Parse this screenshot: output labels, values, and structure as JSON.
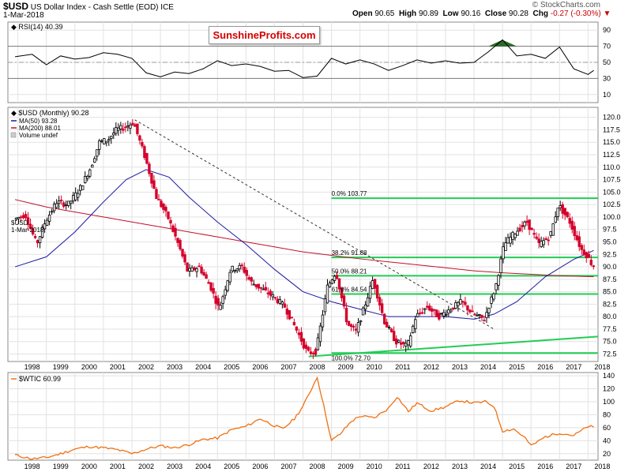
{
  "header": {
    "symbol": "$USD",
    "name": "US Dollar Index - Cash Settle (EOD)",
    "exchange": "ICE",
    "date": "1-Mar-2018",
    "open_label": "Open",
    "open": "90.65",
    "high_label": "High",
    "high": "90.89",
    "low_label": "Low",
    "low": "90.16",
    "close_label": "Close",
    "close": "90.28",
    "chg_label": "Chg",
    "chg": "-0.27 (-0.30%)",
    "copyright": "© StockCharts.com"
  },
  "brand": "SunshineProfits.com",
  "rsi": {
    "label": "RSI(14)",
    "value": "40.39",
    "ticks": [
      90,
      70,
      50,
      30,
      10
    ],
    "overbought": 70,
    "oversold": 30
  },
  "main_legend": {
    "price": "$USD (Monthly) 90.28",
    "ma50": "MA(50) 93.28",
    "ma200": "MA(200) 88.01",
    "volume": "Volume undef"
  },
  "wtic_legend": "$WTIC 60.99",
  "fib_labels": {
    "f0": "0.0% 103.77",
    "f382": "38.2% 91.88",
    "f50": "50.0% 88.21",
    "f618": "61.8% 84.54",
    "f100": "100.0% 72.70"
  },
  "x_axis_labels": [
    "1998",
    "1999",
    "2000",
    "2001",
    "2002",
    "2003",
    "2004",
    "2005",
    "2006",
    "2007",
    "2008",
    "2009",
    "2010",
    "2011",
    "2012",
    "2013",
    "2014",
    "2015",
    "2016",
    "2017",
    "2018"
  ],
  "colors": {
    "price_up": "#000000",
    "price_down": "#d4002a",
    "ma50": "#1a1aa0",
    "ma200": "#c0102a",
    "fib": "#22cc55",
    "trend": "#22cc55",
    "wtic": "#f07010",
    "rsi_over": "#2a6a2a",
    "rsi_under": "#9a4040"
  },
  "chart_data": [
    {
      "type": "line",
      "title": "RSI(14)",
      "x": [
        1997.9,
        1998.5,
        1999,
        1999.5,
        2000,
        2000.5,
        2001,
        2001.5,
        2002,
        2002.5,
        2003,
        2003.5,
        2004,
        2004.5,
        2005,
        2005.5,
        2006,
        2006.5,
        2007,
        2007.5,
        2008,
        2008.5,
        2009,
        2009.5,
        2010,
        2010.5,
        2011,
        2011.5,
        2012,
        2012.5,
        2013,
        2013.5,
        2014,
        2014.5,
        2015,
        2015.5,
        2016,
        2016.5,
        2017,
        2017.5,
        2018,
        2018.2
      ],
      "values": [
        57,
        60,
        47,
        58,
        54,
        56,
        62,
        60,
        55,
        37,
        32,
        38,
        36,
        42,
        52,
        46,
        48,
        45,
        39,
        40,
        31,
        33,
        55,
        48,
        53,
        48,
        40,
        46,
        53,
        49,
        52,
        49,
        50,
        63,
        78,
        58,
        60,
        55,
        69,
        42,
        35,
        40
      ],
      "ylim": [
        0,
        100
      ]
    },
    {
      "type": "line",
      "title": "$USD (Monthly) 90.28",
      "x": [
        1997.9,
        1998.3,
        1998.7,
        1999,
        1999.4,
        1999.8,
        2000.2,
        2000.6,
        2000.9,
        2001.2,
        2001.5,
        2001.8,
        2002.1,
        2002.5,
        2002.9,
        2003.3,
        2003.7,
        2004.0,
        2004.4,
        2004.8,
        2005.1,
        2005.5,
        2005.9,
        2006.2,
        2006.6,
        2007.0,
        2007.4,
        2007.8,
        2008.2,
        2008.5,
        2008.9,
        2009.2,
        2009.6,
        2009.9,
        2010.2,
        2010.5,
        2010.9,
        2011.3,
        2011.7,
        2012.0,
        2012.4,
        2012.8,
        2013.2,
        2013.6,
        2014.0,
        2014.4,
        2014.8,
        2015.1,
        2015.5,
        2015.9,
        2016.3,
        2016.7,
        2017.0,
        2017.4,
        2017.8,
        2018.0,
        2018.2
      ],
      "values": [
        99.5,
        100.5,
        94.5,
        99,
        103,
        102.5,
        105.5,
        110,
        115,
        115.5,
        117.5,
        118,
        119,
        112,
        104,
        100,
        94,
        89,
        90,
        86,
        81.5,
        89.5,
        90,
        87,
        85.5,
        84,
        82,
        77.5,
        72.7,
        73,
        86,
        89,
        78.5,
        77,
        82,
        87.5,
        79,
        75,
        74,
        80,
        82,
        80,
        81.5,
        83,
        80.5,
        79.5,
        86,
        94.5,
        97,
        99,
        94.5,
        96,
        102.5,
        99,
        93.5,
        92.3,
        90.28
      ],
      "ylim": [
        71,
        122
      ]
    },
    {
      "type": "line",
      "title": "MA(50)",
      "x": [
        1997.9,
        1999,
        2000,
        2001,
        2001.8,
        2002.5,
        2003.3,
        2004,
        2005,
        2006,
        2007,
        2008,
        2009,
        2010,
        2011,
        2012,
        2013,
        2014,
        2014.7,
        2015.5,
        2016.5,
        2017.5,
        2018.2
      ],
      "values": [
        90,
        92,
        97,
        103,
        107.5,
        109.5,
        108,
        104,
        99,
        94.5,
        89.5,
        85,
        83,
        81.5,
        80,
        80,
        80,
        79.5,
        80.5,
        83,
        88,
        91.5,
        93.28
      ],
      "ylim": [
        71,
        122
      ]
    },
    {
      "type": "line",
      "title": "MA(200)",
      "x": [
        1997.9,
        1999,
        2000,
        2001,
        2002,
        2003,
        2004,
        2005,
        2006,
        2007,
        2008,
        2009,
        2010,
        2011,
        2012,
        2013,
        2014,
        2015,
        2016,
        2017,
        2018.2
      ],
      "values": [
        103.5,
        102,
        101,
        100,
        99,
        98,
        97,
        96,
        95,
        94,
        93,
        92.3,
        91.6,
        91,
        90.4,
        89.8,
        89.2,
        88.8,
        88.5,
        88.2,
        88.01
      ],
      "ylim": [
        71,
        122
      ]
    },
    {
      "type": "line",
      "title": "$WTIC 60.99",
      "x": [
        1997.9,
        1998.5,
        1999,
        1999.5,
        2000,
        2000.5,
        2001,
        2001.5,
        2002,
        2002.5,
        2003,
        2003.5,
        2004,
        2004.5,
        2005,
        2005.5,
        2006,
        2006.5,
        2007,
        2007.3,
        2007.7,
        2008,
        2008.3,
        2008.5,
        2008.8,
        2009,
        2009.3,
        2009.7,
        2010,
        2010.5,
        2011,
        2011.3,
        2011.7,
        2012,
        2012.5,
        2013,
        2013.5,
        2014,
        2014.4,
        2014.7,
        2015,
        2015.4,
        2015.8,
        2016,
        2016.5,
        2017,
        2017.5,
        2018,
        2018.2
      ],
      "values": [
        18,
        12,
        14,
        20,
        27,
        31,
        29,
        26,
        20,
        27,
        32,
        29,
        34,
        42,
        44,
        57,
        62,
        74,
        63,
        58,
        74,
        93,
        120,
        138,
        80,
        40,
        50,
        70,
        78,
        75,
        90,
        108,
        85,
        98,
        86,
        92,
        102,
        98,
        100,
        93,
        55,
        58,
        44,
        32,
        46,
        52,
        48,
        62,
        60.99
      ],
      "ylim": [
        10,
        145
      ]
    }
  ]
}
